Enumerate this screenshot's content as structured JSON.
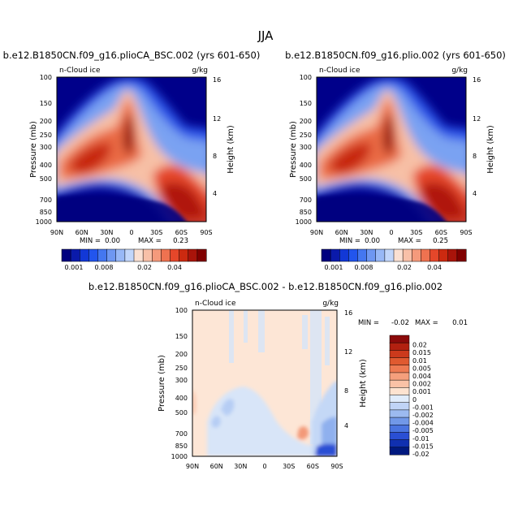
{
  "figure": {
    "title": "JJA"
  },
  "chart_data": [
    {
      "type": "heatmap",
      "title": "b.e12.B1850CN.f09_g16.plioCA_BSC.002 (yrs 601-650)",
      "left_label": "n-Cloud ice",
      "right_label": "g/kg",
      "xlabel": "",
      "ylabel": "Pressure (mb)",
      "y2label": "Height (km)",
      "xticks": [
        "90N",
        "60N",
        "30N",
        "0",
        "30S",
        "60S",
        "90S"
      ],
      "yticks": [
        "100",
        "150",
        "200",
        "250",
        "300",
        "400",
        "500",
        "700",
        "850",
        "1000"
      ],
      "y2ticks": [
        "16",
        "12",
        "8",
        "4"
      ],
      "stats": {
        "min_label": "MIN =",
        "min": "0.00",
        "max_label": "MAX =",
        "max": "0.23"
      },
      "colorbar_labels": [
        "0.001",
        "0.008",
        "0.02",
        "0.04"
      ],
      "colors": [
        "#00007f",
        "#0a1aaa",
        "#1238d6",
        "#2255ee",
        "#4477f0",
        "#6e97f2",
        "#98b8f6",
        "#c2d6fa",
        "#fbe0d2",
        "#f8c0a8",
        "#f59a7c",
        "#ef7250",
        "#e5472a",
        "#cc2a10",
        "#a9140a",
        "#800000"
      ]
    },
    {
      "type": "heatmap",
      "title": "b.e12.B1850CN.f09_g16.plio.002 (yrs 601-650)",
      "left_label": "n-Cloud ice",
      "right_label": "g/kg",
      "xlabel": "",
      "ylabel": "Pressure (mb)",
      "y2label": "Height (km)",
      "xticks": [
        "90N",
        "60N",
        "30N",
        "0",
        "30S",
        "60S",
        "90S"
      ],
      "yticks": [
        "100",
        "150",
        "200",
        "250",
        "300",
        "400",
        "500",
        "700",
        "850",
        "1000"
      ],
      "y2ticks": [
        "16",
        "12",
        "8",
        "4"
      ],
      "stats": {
        "min_label": "MIN =",
        "min": "0.00",
        "max_label": "MAX =",
        "max": "0.25"
      },
      "colorbar_labels": [
        "0.001",
        "0.008",
        "0.02",
        "0.04"
      ],
      "colors": [
        "#00007f",
        "#0a1aaa",
        "#1238d6",
        "#2255ee",
        "#4477f0",
        "#6e97f2",
        "#98b8f6",
        "#c2d6fa",
        "#fbe0d2",
        "#f8c0a8",
        "#f59a7c",
        "#ef7250",
        "#e5472a",
        "#cc2a10",
        "#a9140a",
        "#800000"
      ]
    },
    {
      "type": "heatmap",
      "title": "b.e12.B1850CN.f09_g16.plioCA_BSC.002 - b.e12.B1850CN.f09_g16.plio.002",
      "left_label": "n-Cloud ice",
      "right_label": "g/kg",
      "xlabel": "",
      "ylabel": "Pressure (mb)",
      "y2label": "Height (km)",
      "xticks": [
        "90N",
        "60N",
        "30N",
        "0",
        "30S",
        "60S",
        "90S"
      ],
      "yticks": [
        "100",
        "150",
        "200",
        "250",
        "300",
        "400",
        "500",
        "700",
        "850",
        "1000"
      ],
      "y2ticks": [
        "16",
        "12",
        "8",
        "4"
      ],
      "stats": {
        "min_label": "MIN =",
        "min": "-0.02",
        "max_label": "MAX =",
        "max": "0.01"
      },
      "colorbar_labels": [
        "0.02",
        "0.015",
        "0.01",
        "0.005",
        "0.004",
        "0.002",
        "0.001",
        "0",
        "-0.001",
        "-0.002",
        "-0.004",
        "-0.005",
        "-0.01",
        "-0.015",
        "-0.02"
      ],
      "colors": [
        "#8b0a0a",
        "#b22010",
        "#cc3a1c",
        "#e05a30",
        "#ee7a52",
        "#f59f7c",
        "#fac2a6",
        "#fde3d0",
        "#e0ecfb",
        "#c0d4f6",
        "#9cbaf0",
        "#7198e8",
        "#4a74e0",
        "#2a4fd4",
        "#1030b0",
        "#00197f"
      ]
    }
  ]
}
